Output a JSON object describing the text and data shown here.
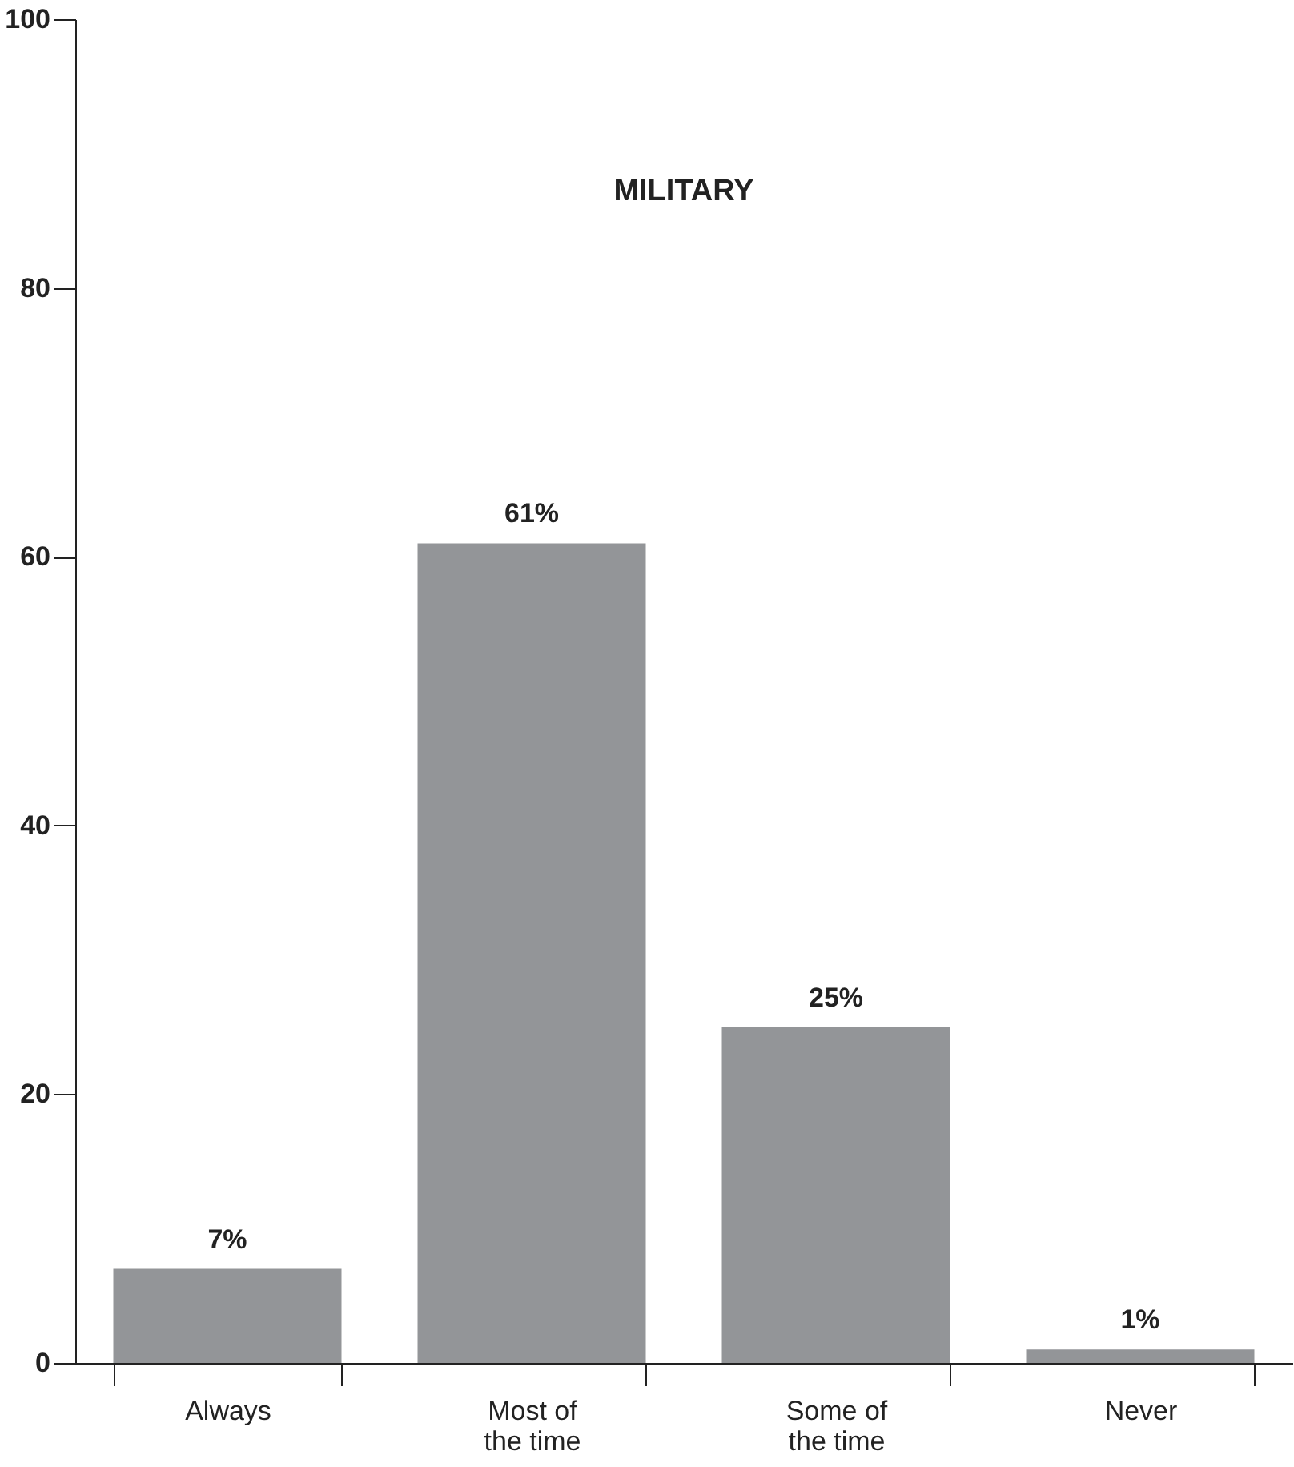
{
  "chart_data": {
    "type": "bar",
    "title": "MILITARY",
    "categories": [
      "Always",
      "Most of the time",
      "Some of the time",
      "Never"
    ],
    "values": [
      7,
      61,
      25,
      1
    ],
    "value_labels": [
      "7%",
      "61%",
      "25%",
      "1%"
    ],
    "color": "#939598",
    "ylim": [
      0,
      100
    ],
    "yticks": [
      0,
      20,
      40,
      60,
      80,
      100
    ],
    "grid": false
  }
}
